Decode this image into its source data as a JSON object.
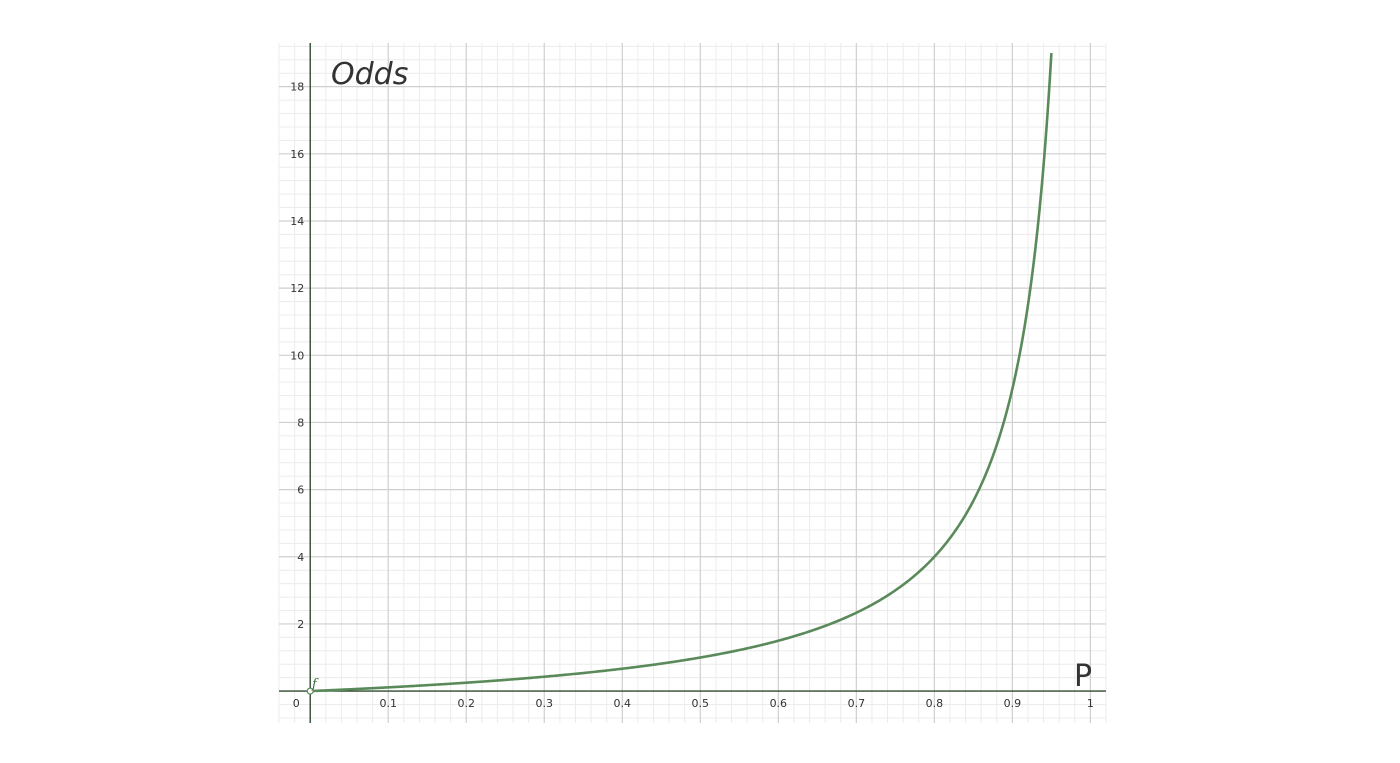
{
  "chart_data": {
    "type": "line",
    "ylabel": "Odds",
    "xlabel": "P",
    "function_label": "f",
    "xlim": [
      -0.04,
      1.02
    ],
    "ylim": [
      -0.95,
      19.3
    ],
    "x_ticks": [
      {
        "value": 0,
        "label": "0"
      },
      {
        "value": 0.1,
        "label": "0.1"
      },
      {
        "value": 0.2,
        "label": "0.2"
      },
      {
        "value": 0.3,
        "label": "0.3"
      },
      {
        "value": 0.4,
        "label": "0.4"
      },
      {
        "value": 0.5,
        "label": "0.5"
      },
      {
        "value": 0.6,
        "label": "0.6"
      },
      {
        "value": 0.7,
        "label": "0.7"
      },
      {
        "value": 0.8,
        "label": "0.8"
      },
      {
        "value": 0.9,
        "label": "0.9"
      },
      {
        "value": 1,
        "label": "1"
      }
    ],
    "y_ticks": [
      {
        "value": 2,
        "label": "2"
      },
      {
        "value": 4,
        "label": "4"
      },
      {
        "value": 6,
        "label": "6"
      },
      {
        "value": 8,
        "label": "8"
      },
      {
        "value": 10,
        "label": "10"
      },
      {
        "value": 12,
        "label": "12"
      },
      {
        "value": 14,
        "label": "14"
      },
      {
        "value": 16,
        "label": "16"
      },
      {
        "value": 18,
        "label": "18"
      }
    ],
    "grid": true,
    "minor_grid": true,
    "series": [
      {
        "color": "#5a8a5a",
        "x": [
          0,
          0.1,
          0.2,
          0.3,
          0.4,
          0.5,
          0.6,
          0.7,
          0.75,
          0.8,
          0.85,
          0.88,
          0.9,
          0.92,
          0.93,
          0.94,
          0.95
        ],
        "y": [
          0,
          0.11,
          0.25,
          0.43,
          0.67,
          1,
          1.5,
          2.33,
          3,
          4,
          5.67,
          7.33,
          9,
          11.5,
          13.29,
          15.67,
          19
        ]
      }
    ]
  }
}
